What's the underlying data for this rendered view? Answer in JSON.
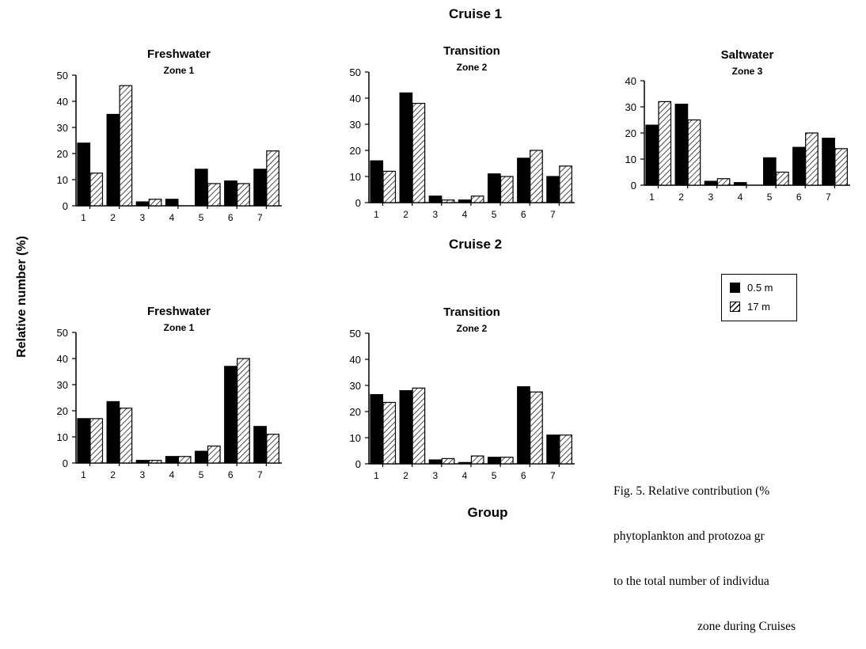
{
  "cruise1_title": "Cruise 1",
  "cruise2_title": "Cruise 2",
  "y_axis_label": "Relative number (%)",
  "x_axis_label": "Group",
  "legend": [
    {
      "label": "0.5 m",
      "fill": "solid-black"
    },
    {
      "label": "17 m",
      "fill": "hatched"
    }
  ],
  "caption_lines": [
    "Fig. 5. Relative contribution (%",
    "phytoplankton and protozoa gr",
    "to the total number of individua",
    "zone during Cruises"
  ],
  "colors": {
    "bar_dark": "#000000",
    "background": "#ffffff"
  },
  "chart_data": [
    {
      "type": "bar",
      "title": "Freshwater",
      "subtitle": "Zone 1",
      "categories": [
        "1",
        "2",
        "3",
        "4",
        "5",
        "6",
        "7"
      ],
      "series": [
        {
          "name": "0.5 m",
          "values": [
            24,
            35,
            1.5,
            2.5,
            14,
            9.5,
            14
          ]
        },
        {
          "name": "17 m",
          "values": [
            12.5,
            46,
            2.5,
            0,
            8.5,
            8.5,
            21
          ]
        }
      ],
      "ylim": [
        0,
        50
      ],
      "yticks": [
        0,
        10,
        20,
        30,
        40,
        50
      ]
    },
    {
      "type": "bar",
      "title": "Transition",
      "subtitle": "Zone 2",
      "categories": [
        "1",
        "2",
        "3",
        "4",
        "5",
        "6",
        "7"
      ],
      "series": [
        {
          "name": "0.5 m",
          "values": [
            16,
            42,
            2.5,
            1,
            11,
            17,
            10
          ]
        },
        {
          "name": "17 m",
          "values": [
            12,
            38,
            1,
            2.5,
            10,
            20,
            14
          ]
        }
      ],
      "ylim": [
        0,
        50
      ],
      "yticks": [
        0,
        10,
        20,
        30,
        40,
        50
      ]
    },
    {
      "type": "bar",
      "title": "Saltwater",
      "subtitle": "Zone 3",
      "categories": [
        "1",
        "2",
        "3",
        "4",
        "5",
        "6",
        "7"
      ],
      "series": [
        {
          "name": "0.5 m",
          "values": [
            23,
            31,
            1.5,
            1,
            10.5,
            14.5,
            18
          ]
        },
        {
          "name": "17 m",
          "values": [
            32,
            25,
            2.5,
            0,
            5,
            20,
            14
          ]
        }
      ],
      "ylim": [
        0,
        40
      ],
      "yticks": [
        0,
        10,
        20,
        30,
        40
      ]
    },
    {
      "type": "bar",
      "title": "Freshwater",
      "subtitle": "Zone 1",
      "categories": [
        "1",
        "2",
        "3",
        "4",
        "5",
        "6",
        "7"
      ],
      "series": [
        {
          "name": "0.5 m",
          "values": [
            17,
            23.5,
            1,
            2.5,
            4.5,
            37,
            14
          ]
        },
        {
          "name": "17 m",
          "values": [
            17,
            21,
            1,
            2.5,
            6.5,
            40,
            11
          ]
        }
      ],
      "ylim": [
        0,
        50
      ],
      "yticks": [
        0,
        10,
        20,
        30,
        40,
        50
      ]
    },
    {
      "type": "bar",
      "title": "Transition",
      "subtitle": "Zone 2",
      "categories": [
        "1",
        "2",
        "3",
        "4",
        "5",
        "6",
        "7"
      ],
      "series": [
        {
          "name": "0.5 m",
          "values": [
            26.5,
            28,
            1.5,
            0.5,
            2.5,
            29.5,
            11
          ]
        },
        {
          "name": "17 m",
          "values": [
            23.5,
            29,
            2,
            3,
            2.5,
            27.5,
            11
          ]
        }
      ],
      "ylim": [
        0,
        50
      ],
      "yticks": [
        0,
        10,
        20,
        30,
        40,
        50
      ]
    }
  ]
}
